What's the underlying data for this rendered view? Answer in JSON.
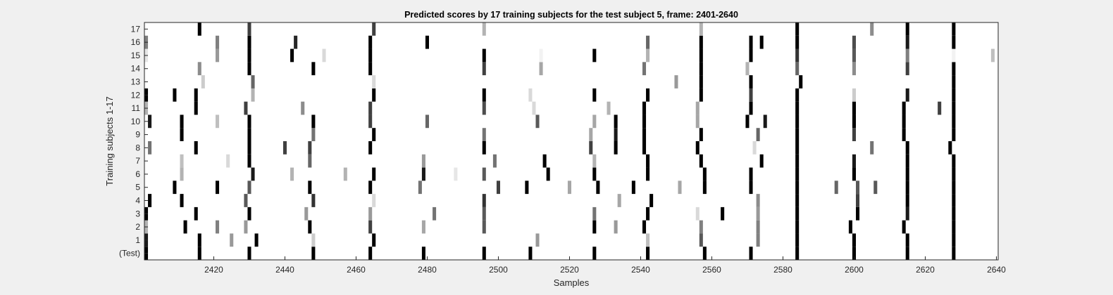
{
  "chart_data": {
    "type": "heatmap",
    "title": "Predicted scores by 17 training subjects for the test subject 5, frame: 2401-2640",
    "xlabel": "Samples",
    "ylabel": "Training subjects 1-17",
    "xlim": [
      2401,
      2640
    ],
    "x_ticks": [
      2420,
      2440,
      2460,
      2480,
      2500,
      2520,
      2540,
      2560,
      2580,
      2600,
      2620,
      2640
    ],
    "y_tick_labels": [
      "(Test)",
      "1",
      "2",
      "3",
      "4",
      "5",
      "6",
      "7",
      "8",
      "9",
      "10",
      "11",
      "12",
      "13",
      "14",
      "15",
      "16",
      "17"
    ],
    "colormap": "grayscale (white = 0, black = 1)",
    "grid": false,
    "rows": [
      {
        "label": "(Test)",
        "marks": [
          [
            2401,
            1
          ],
          [
            2416,
            1
          ],
          [
            2430,
            1
          ],
          [
            2448,
            1
          ],
          [
            2464,
            1
          ],
          [
            2479,
            1
          ],
          [
            2496,
            1
          ],
          [
            2509,
            1
          ],
          [
            2527,
            1
          ],
          [
            2542,
            1
          ],
          [
            2558,
            1
          ],
          [
            2571,
            1
          ],
          [
            2584,
            1
          ],
          [
            2600,
            1
          ],
          [
            2615,
            1
          ],
          [
            2628,
            1
          ]
        ]
      },
      {
        "label": "1",
        "marks": [
          [
            2401,
            0.9
          ],
          [
            2416,
            1
          ],
          [
            2425,
            0.4
          ],
          [
            2432,
            1
          ],
          [
            2448,
            0.2
          ],
          [
            2465,
            1
          ],
          [
            2511,
            0.4
          ],
          [
            2542,
            0.25
          ],
          [
            2557,
            0.65
          ],
          [
            2573,
            0.5
          ],
          [
            2584,
            1
          ],
          [
            2600,
            1
          ],
          [
            2615,
            1
          ],
          [
            2628,
            1
          ]
        ]
      },
      {
        "label": "2",
        "marks": [
          [
            2401,
            0.3
          ],
          [
            2412,
            1
          ],
          [
            2421,
            0.5
          ],
          [
            2429,
            0.4
          ],
          [
            2447,
            1
          ],
          [
            2464,
            0.75
          ],
          [
            2479,
            0.35
          ],
          [
            2496,
            0.65
          ],
          [
            2527,
            1
          ],
          [
            2533,
            0.4
          ],
          [
            2541,
            1
          ],
          [
            2557,
            0.5
          ],
          [
            2573,
            0.5
          ],
          [
            2584,
            1
          ],
          [
            2599,
            1
          ],
          [
            2614,
            1
          ],
          [
            2628,
            1
          ]
        ]
      },
      {
        "label": "3",
        "marks": [
          [
            2401,
            1
          ],
          [
            2415,
            1
          ],
          [
            2430,
            1
          ],
          [
            2446,
            0.4
          ],
          [
            2464,
            0.4
          ],
          [
            2482,
            0.55
          ],
          [
            2496,
            0.65
          ],
          [
            2527,
            0.55
          ],
          [
            2542,
            1
          ],
          [
            2556,
            0.15
          ],
          [
            2563,
            1
          ],
          [
            2573,
            0.4
          ],
          [
            2584,
            1
          ],
          [
            2601,
            1
          ],
          [
            2615,
            0.9
          ],
          [
            2628,
            1
          ]
        ]
      },
      {
        "label": "4",
        "marks": [
          [
            2402,
            1
          ],
          [
            2411,
            1
          ],
          [
            2429,
            0.65
          ],
          [
            2448,
            0.8
          ],
          [
            2465,
            0.15
          ],
          [
            2496,
            0.8
          ],
          [
            2534,
            0.35
          ],
          [
            2543,
            1
          ],
          [
            2573,
            0.45
          ],
          [
            2584,
            1
          ],
          [
            2601,
            0.75
          ],
          [
            2615,
            1
          ],
          [
            2628,
            1
          ]
        ]
      },
      {
        "label": "5",
        "marks": [
          [
            2409,
            1
          ],
          [
            2421,
            1
          ],
          [
            2430,
            0.65
          ],
          [
            2447,
            1
          ],
          [
            2464,
            1
          ],
          [
            2478,
            0.55
          ],
          [
            2500,
            0.75
          ],
          [
            2508,
            1
          ],
          [
            2520,
            0.35
          ],
          [
            2528,
            1
          ],
          [
            2538,
            1
          ],
          [
            2551,
            0.35
          ],
          [
            2558,
            1
          ],
          [
            2571,
            1
          ],
          [
            2584,
            1
          ],
          [
            2595,
            0.6
          ],
          [
            2601,
            0.65
          ],
          [
            2606,
            0.65
          ],
          [
            2615,
            1
          ],
          [
            2628,
            1
          ]
        ]
      },
      {
        "label": "6",
        "marks": [
          [
            2411,
            0.3
          ],
          [
            2431,
            0.9
          ],
          [
            2442,
            0.3
          ],
          [
            2457,
            0.3
          ],
          [
            2465,
            1
          ],
          [
            2479,
            0.9
          ],
          [
            2488,
            0.1
          ],
          [
            2496,
            0.65
          ],
          [
            2514,
            1
          ],
          [
            2527,
            1
          ],
          [
            2542,
            1
          ],
          [
            2558,
            1
          ],
          [
            2571,
            1
          ],
          [
            2584,
            1
          ],
          [
            2600,
            1
          ],
          [
            2615,
            1
          ],
          [
            2628,
            1
          ]
        ]
      },
      {
        "label": "7",
        "marks": [
          [
            2411,
            0.25
          ],
          [
            2424,
            0.15
          ],
          [
            2430,
            1
          ],
          [
            2447,
            0.6
          ],
          [
            2479,
            0.4
          ],
          [
            2499,
            0.55
          ],
          [
            2513,
            1
          ],
          [
            2527,
            0.3
          ],
          [
            2542,
            1
          ],
          [
            2557,
            1
          ],
          [
            2574,
            1
          ],
          [
            2584,
            1
          ],
          [
            2600,
            0.9
          ],
          [
            2615,
            1
          ],
          [
            2628,
            1
          ]
        ]
      },
      {
        "label": "8",
        "marks": [
          [
            2402,
            0.55
          ],
          [
            2415,
            1
          ],
          [
            2430,
            1
          ],
          [
            2440,
            0.75
          ],
          [
            2447,
            0.75
          ],
          [
            2464,
            1
          ],
          [
            2496,
            1
          ],
          [
            2526,
            0.75
          ],
          [
            2533,
            1
          ],
          [
            2541,
            1
          ],
          [
            2556,
            1
          ],
          [
            2572,
            0.15
          ],
          [
            2584,
            1
          ],
          [
            2605,
            0.55
          ],
          [
            2615,
            1
          ],
          [
            2627,
            1
          ]
        ]
      },
      {
        "label": "9",
        "marks": [
          [
            2411,
            1
          ],
          [
            2430,
            1
          ],
          [
            2448,
            0.55
          ],
          [
            2465,
            1
          ],
          [
            2496,
            0.55
          ],
          [
            2526,
            0.35
          ],
          [
            2533,
            0.9
          ],
          [
            2541,
            1
          ],
          [
            2557,
            1
          ],
          [
            2573,
            0.6
          ],
          [
            2584,
            1
          ],
          [
            2600,
            0.75
          ],
          [
            2614,
            1
          ],
          [
            2628,
            1
          ]
        ]
      },
      {
        "label": "10",
        "marks": [
          [
            2402,
            0.9
          ],
          [
            2411,
            1
          ],
          [
            2421,
            0.25
          ],
          [
            2430,
            1
          ],
          [
            2448,
            1
          ],
          [
            2464,
            0.75
          ],
          [
            2480,
            0.6
          ],
          [
            2511,
            0.65
          ],
          [
            2527,
            0.35
          ],
          [
            2533,
            1
          ],
          [
            2541,
            1
          ],
          [
            2556,
            0.35
          ],
          [
            2570,
            1
          ],
          [
            2575,
            0.9
          ],
          [
            2584,
            1
          ],
          [
            2600,
            1
          ],
          [
            2614,
            1
          ],
          [
            2628,
            1
          ]
        ]
      },
      {
        "label": "11",
        "marks": [
          [
            2401,
            0.3
          ],
          [
            2415,
            1
          ],
          [
            2429,
            0.75
          ],
          [
            2445,
            0.45
          ],
          [
            2464,
            0.75
          ],
          [
            2496,
            0.7
          ],
          [
            2510,
            0.15
          ],
          [
            2531,
            0.3
          ],
          [
            2541,
            1
          ],
          [
            2556,
            0.35
          ],
          [
            2571,
            1
          ],
          [
            2584,
            1
          ],
          [
            2600,
            1
          ],
          [
            2614,
            1
          ],
          [
            2624,
            0.75
          ],
          [
            2628,
            1
          ]
        ]
      },
      {
        "label": "12",
        "marks": [
          [
            2401,
            1
          ],
          [
            2409,
            1
          ],
          [
            2415,
            1
          ],
          [
            2431,
            0.3
          ],
          [
            2465,
            1
          ],
          [
            2496,
            1
          ],
          [
            2509,
            0.15
          ],
          [
            2527,
            1
          ],
          [
            2542,
            1
          ],
          [
            2557,
            1
          ],
          [
            2571,
            0.75
          ],
          [
            2584,
            1
          ],
          [
            2600,
            0.2
          ],
          [
            2615,
            0.9
          ],
          [
            2628,
            1
          ]
        ]
      },
      {
        "label": "13",
        "marks": [
          [
            2417,
            0.2
          ],
          [
            2431,
            0.6
          ],
          [
            2465,
            0.15
          ],
          [
            2550,
            0.4
          ],
          [
            2557,
            1
          ],
          [
            2571,
            1
          ],
          [
            2585,
            1
          ],
          [
            2628,
            1
          ]
        ]
      },
      {
        "label": "14",
        "marks": [
          [
            2416,
            0.45
          ],
          [
            2430,
            1
          ],
          [
            2448,
            1
          ],
          [
            2464,
            1
          ],
          [
            2496,
            0.75
          ],
          [
            2512,
            0.35
          ],
          [
            2541,
            0.55
          ],
          [
            2557,
            1
          ],
          [
            2570,
            0.3
          ],
          [
            2584,
            0.6
          ],
          [
            2600,
            0.45
          ],
          [
            2615,
            0.75
          ],
          [
            2628,
            1
          ]
        ]
      },
      {
        "label": "15",
        "marks": [
          [
            2401,
            0.1
          ],
          [
            2421,
            0.4
          ],
          [
            2430,
            1
          ],
          [
            2442,
            1
          ],
          [
            2451,
            0.15
          ],
          [
            2464,
            1
          ],
          [
            2496,
            1
          ],
          [
            2512,
            0.05
          ],
          [
            2527,
            1
          ],
          [
            2542,
            0.3
          ],
          [
            2557,
            1
          ],
          [
            2571,
            1
          ],
          [
            2584,
            0.8
          ],
          [
            2600,
            0.65
          ],
          [
            2615,
            0.5
          ],
          [
            2628,
            0.05
          ],
          [
            2639,
            0.25
          ]
        ]
      },
      {
        "label": "16",
        "marks": [
          [
            2401,
            0.5
          ],
          [
            2421,
            0.5
          ],
          [
            2430,
            1
          ],
          [
            2443,
            0.85
          ],
          [
            2464,
            1
          ],
          [
            2480,
            1
          ],
          [
            2542,
            0.6
          ],
          [
            2557,
            1
          ],
          [
            2571,
            1
          ],
          [
            2574,
            1
          ],
          [
            2584,
            1
          ],
          [
            2600,
            0.7
          ],
          [
            2615,
            0.9
          ],
          [
            2628,
            1
          ]
        ]
      },
      {
        "label": "17",
        "marks": [
          [
            2416,
            1
          ],
          [
            2430,
            0.75
          ],
          [
            2465,
            0.75
          ],
          [
            2496,
            0.3
          ],
          [
            2557,
            0.3
          ],
          [
            2584,
            1
          ],
          [
            2605,
            0.45
          ],
          [
            2615,
            1
          ],
          [
            2628,
            1
          ]
        ]
      }
    ]
  }
}
